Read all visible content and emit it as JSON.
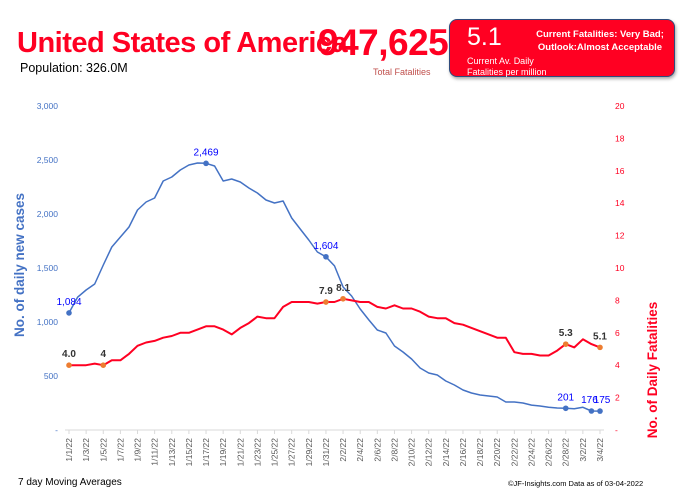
{
  "header": {
    "country": "United States of America",
    "population": "Population: 326.0M",
    "total_fatalities": "947,625",
    "total_fatalities_label": "Total Fatalities"
  },
  "status": {
    "value": "5.1",
    "desc_line1": "Current Av. Daily",
    "desc_line2": "Fatalities per million",
    "text_line1": "Current Fatalities: Very Bad;",
    "text_line2": "Outlook:Almost Acceptable",
    "color": "#ff0022"
  },
  "footer": {
    "left": "7 day Moving Averages",
    "right": "©JF-Insights.com  Data as of 03-04-2022"
  },
  "chart_data": {
    "type": "line",
    "title": "",
    "xlabel": "",
    "ylabel": "No. of daily new  cases",
    "y2label": "No. of Daily Fatalities",
    "ylim": [
      0,
      3000
    ],
    "y2lim": [
      0,
      20
    ],
    "yticks": [
      "-",
      "500",
      "1,000",
      "1,500",
      "2,000",
      "2,500",
      "3,000"
    ],
    "y2ticks": [
      "-",
      "2",
      "4",
      "6",
      "8",
      "10",
      "12",
      "14",
      "16",
      "18",
      "20"
    ],
    "xticks": [
      "1/1/22",
      "1/3/22",
      "1/5/22",
      "1/7/22",
      "1/9/22",
      "1/11/22",
      "1/13/22",
      "1/15/22",
      "1/17/22",
      "1/19/22",
      "1/21/22",
      "1/23/22",
      "1/25/22",
      "1/27/22",
      "1/29/22",
      "1/31/22",
      "2/2/22",
      "2/4/22",
      "2/6/22",
      "2/8/22",
      "2/10/22",
      "2/12/22",
      "2/14/22",
      "2/16/22",
      "2/18/22",
      "2/20/22",
      "2/22/22",
      "2/24/22",
      "2/26/22",
      "2/28/22",
      "3/2/22",
      "3/4/22"
    ],
    "grid": false,
    "legend": "none",
    "series": [
      {
        "name": "Daily new cases",
        "axis": "left",
        "color": "#4472c4",
        "label_color": "#0000ff",
        "values": [
          1084,
          1230,
          1296,
          1352,
          1528,
          1694,
          1787,
          1880,
          2037,
          2111,
          2148,
          2306,
          2343,
          2407,
          2454,
          2472,
          2469,
          2444,
          2306,
          2324,
          2296,
          2241,
          2194,
          2130,
          2102,
          2120,
          1963,
          1861,
          1759,
          1648,
          1604,
          1519,
          1324,
          1241,
          1120,
          1019,
          926,
          898,
          778,
          722,
          657,
          574,
          528,
          509,
          454,
          417,
          370,
          343,
          324,
          315,
          306,
          259,
          259,
          250,
          231,
          222,
          210,
          204,
          201,
          196,
          210,
          176,
          175
        ],
        "labels": [
          {
            "index": 0,
            "text": "1,084"
          },
          {
            "index": 16,
            "text": "2,469"
          },
          {
            "index": 30,
            "text": "1,604"
          },
          {
            "index": 58,
            "text": "201"
          },
          {
            "index": 61,
            "text": "176"
          },
          {
            "index": 62,
            "text": "175"
          }
        ]
      },
      {
        "name": "Daily fatalities",
        "axis": "right",
        "color": "#ff0022",
        "label_color": "#333333",
        "values": [
          4.0,
          4.0,
          4.0,
          4.1,
          4.0,
          4.3,
          4.3,
          4.7,
          5.2,
          5.4,
          5.5,
          5.7,
          5.8,
          6.0,
          6.0,
          6.2,
          6.4,
          6.4,
          6.2,
          5.9,
          6.3,
          6.6,
          7.0,
          6.9,
          6.9,
          7.6,
          7.9,
          7.9,
          7.9,
          7.8,
          7.9,
          7.9,
          8.1,
          8.0,
          7.9,
          7.9,
          7.6,
          7.5,
          7.7,
          7.5,
          7.5,
          7.3,
          7.0,
          6.9,
          6.9,
          6.6,
          6.5,
          6.3,
          6.1,
          5.9,
          5.7,
          5.7,
          4.8,
          4.7,
          4.7,
          4.6,
          4.6,
          4.9,
          5.3,
          5.1,
          5.6,
          5.3,
          5.1
        ],
        "labels": [
          {
            "index": 0,
            "text": "4.0"
          },
          {
            "index": 4,
            "text": "4"
          },
          {
            "index": 30,
            "text": "7.9"
          },
          {
            "index": 32,
            "text": "8.1"
          },
          {
            "index": 58,
            "text": "5.3"
          },
          {
            "index": 62,
            "text": "5.1"
          }
        ]
      }
    ]
  }
}
